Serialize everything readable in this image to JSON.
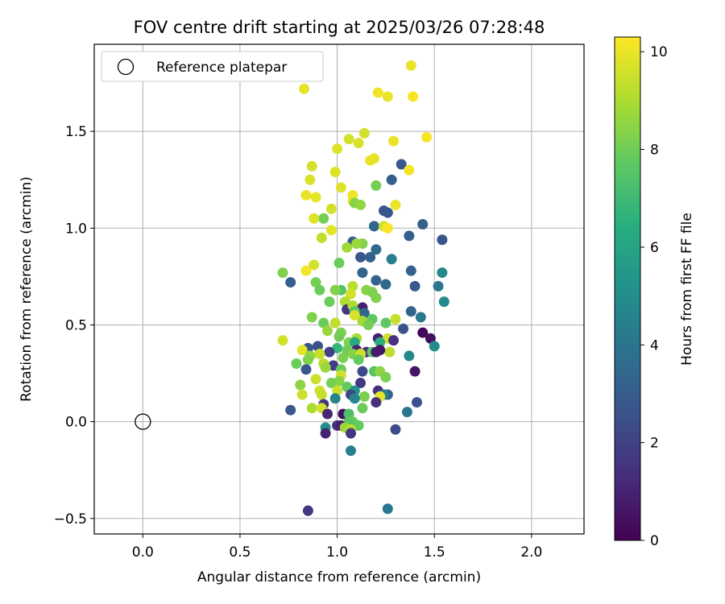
{
  "chart_data": {
    "type": "scatter",
    "title": "FOV centre drift starting at 2025/03/26 07:28:48",
    "xlabel": "Angular distance from reference (arcmin)",
    "ylabel": "Rotation from reference (arcmin)",
    "xlim": [
      -0.25,
      2.27
    ],
    "ylim": [
      -0.58,
      1.95
    ],
    "xticks": [
      0.0,
      0.5,
      1.0,
      1.5,
      2.0
    ],
    "xtick_labels": [
      "0.0",
      "0.5",
      "1.0",
      "1.5",
      "2.0"
    ],
    "yticks": [
      -0.5,
      0.0,
      0.5,
      1.0,
      1.5
    ],
    "ytick_labels": [
      "−0.5",
      "0.0",
      "0.5",
      "1.0",
      "1.5"
    ],
    "grid": true,
    "legend": {
      "position": "top-left",
      "entries": [
        "Reference platepar"
      ]
    },
    "colorbar": {
      "label": "Hours from first FF file",
      "range": [
        0,
        10.3
      ],
      "ticks": [
        0,
        2,
        4,
        6,
        8,
        10
      ],
      "tick_labels": [
        "0",
        "2",
        "4",
        "6",
        "8",
        "10"
      ],
      "colormap": "viridis"
    },
    "reference": {
      "x": 0.0,
      "y": 0.0,
      "label": "Reference platepar"
    },
    "points": [
      [
        1.38,
        1.84,
        10.0
      ],
      [
        0.83,
        1.72,
        9.9
      ],
      [
        1.21,
        1.7,
        10.1
      ],
      [
        1.26,
        1.68,
        10.0
      ],
      [
        1.39,
        1.68,
        10.2
      ],
      [
        1.14,
        1.49,
        9.6
      ],
      [
        1.06,
        1.46,
        9.6
      ],
      [
        1.46,
        1.47,
        10.2
      ],
      [
        1.29,
        1.45,
        10.0
      ],
      [
        1.11,
        1.44,
        9.7
      ],
      [
        1.0,
        1.41,
        9.8
      ],
      [
        1.19,
        1.36,
        9.9
      ],
      [
        1.17,
        1.35,
        10.0
      ],
      [
        1.33,
        1.33,
        2.8
      ],
      [
        0.87,
        1.32,
        9.6
      ],
      [
        1.37,
        1.3,
        10.1
      ],
      [
        0.99,
        1.29,
        9.8
      ],
      [
        1.28,
        1.25,
        3.1
      ],
      [
        0.86,
        1.25,
        9.7
      ],
      [
        1.02,
        1.21,
        9.8
      ],
      [
        1.2,
        1.22,
        8.1
      ],
      [
        0.84,
        1.17,
        10.0
      ],
      [
        0.89,
        1.16,
        9.9
      ],
      [
        1.08,
        1.17,
        10.1
      ],
      [
        1.08,
        1.14,
        10.0
      ],
      [
        1.09,
        1.13,
        8.4
      ],
      [
        1.12,
        1.12,
        8.6
      ],
      [
        1.3,
        1.12,
        10.0
      ],
      [
        0.97,
        1.1,
        9.6
      ],
      [
        1.24,
        1.09,
        2.6
      ],
      [
        1.26,
        1.08,
        2.8
      ],
      [
        0.93,
        1.05,
        8.1
      ],
      [
        0.88,
        1.05,
        9.8
      ],
      [
        1.44,
        1.02,
        3.1
      ],
      [
        1.19,
        1.01,
        3.4
      ],
      [
        1.24,
        1.01,
        9.6
      ],
      [
        1.26,
        1.0,
        10.2
      ],
      [
        0.97,
        0.99,
        9.9
      ],
      [
        1.37,
        0.96,
        3.1
      ],
      [
        0.92,
        0.95,
        9.3
      ],
      [
        1.54,
        0.94,
        2.8
      ],
      [
        1.08,
        0.93,
        3.0
      ],
      [
        1.13,
        0.92,
        8.3
      ],
      [
        1.1,
        0.92,
        8.7
      ],
      [
        1.2,
        0.89,
        3.6
      ],
      [
        1.05,
        0.9,
        8.8
      ],
      [
        1.12,
        0.85,
        2.8
      ],
      [
        1.17,
        0.85,
        3.1
      ],
      [
        1.28,
        0.84,
        4.4
      ],
      [
        1.01,
        0.82,
        7.9
      ],
      [
        0.88,
        0.81,
        9.6
      ],
      [
        0.84,
        0.78,
        10.1
      ],
      [
        1.38,
        0.78,
        3.1
      ],
      [
        1.54,
        0.77,
        4.8
      ],
      [
        0.72,
        0.77,
        8.3
      ],
      [
        1.13,
        0.77,
        3.3
      ],
      [
        0.76,
        0.72,
        3.1
      ],
      [
        1.2,
        0.73,
        3.3
      ],
      [
        0.89,
        0.72,
        8.1
      ],
      [
        1.25,
        0.71,
        3.4
      ],
      [
        1.4,
        0.7,
        2.9
      ],
      [
        1.52,
        0.7,
        4.0
      ],
      [
        1.08,
        0.7,
        9.2
      ],
      [
        1.02,
        0.68,
        7.5
      ],
      [
        0.91,
        0.68,
        7.9
      ],
      [
        1.15,
        0.68,
        8.4
      ],
      [
        0.99,
        0.68,
        8.3
      ],
      [
        1.18,
        0.67,
        8.2
      ],
      [
        1.07,
        0.66,
        9.6
      ],
      [
        1.2,
        0.64,
        8.3
      ],
      [
        1.04,
        0.62,
        9.1
      ],
      [
        0.96,
        0.62,
        7.9
      ],
      [
        1.05,
        0.58,
        1.6
      ],
      [
        1.08,
        0.6,
        9.1
      ],
      [
        1.13,
        0.59,
        0.9
      ],
      [
        1.09,
        0.57,
        7.7
      ],
      [
        1.38,
        0.57,
        3.2
      ],
      [
        1.14,
        0.56,
        3.4
      ],
      [
        1.55,
        0.62,
        4.8
      ],
      [
        1.43,
        0.54,
        4.1
      ],
      [
        1.09,
        0.55,
        9.7
      ],
      [
        0.87,
        0.54,
        8.3
      ],
      [
        1.3,
        0.53,
        9.4
      ],
      [
        1.18,
        0.53,
        7.7
      ],
      [
        1.13,
        0.52,
        8.9
      ],
      [
        1.25,
        0.51,
        7.7
      ],
      [
        0.99,
        0.51,
        9.3
      ],
      [
        0.93,
        0.51,
        7.9
      ],
      [
        1.16,
        0.5,
        8.1
      ],
      [
        1.34,
        0.48,
        2.6
      ],
      [
        0.95,
        0.47,
        8.7
      ],
      [
        1.02,
        0.46,
        8.2
      ],
      [
        1.44,
        0.46,
        0.2
      ],
      [
        1.01,
        0.44,
        8.0
      ],
      [
        1.21,
        0.43,
        0.9
      ],
      [
        1.1,
        0.43,
        9.0
      ],
      [
        0.72,
        0.42,
        9.6
      ],
      [
        1.26,
        0.43,
        9.6
      ],
      [
        1.06,
        0.41,
        8.3
      ],
      [
        1.22,
        0.41,
        6.5
      ],
      [
        1.09,
        0.41,
        6.3
      ],
      [
        1.29,
        0.42,
        1.5
      ],
      [
        1.48,
        0.43,
        0.4
      ],
      [
        1.5,
        0.39,
        5.0
      ],
      [
        0.9,
        0.39,
        2.5
      ],
      [
        1.0,
        0.38,
        6.8
      ],
      [
        0.85,
        0.38,
        2.8
      ],
      [
        1.05,
        0.37,
        8.0
      ],
      [
        1.1,
        0.37,
        1.0
      ],
      [
        0.82,
        0.37,
        9.9
      ],
      [
        1.15,
        0.36,
        1.6
      ],
      [
        0.96,
        0.36,
        2.0
      ],
      [
        1.27,
        0.36,
        9.3
      ],
      [
        1.18,
        0.36,
        7.7
      ],
      [
        1.22,
        0.37,
        0.5
      ],
      [
        1.2,
        0.36,
        0.8
      ],
      [
        1.08,
        0.35,
        8.3
      ],
      [
        1.12,
        0.35,
        9.5
      ],
      [
        0.91,
        0.35,
        9.4
      ],
      [
        1.37,
        0.34,
        4.8
      ],
      [
        0.86,
        0.34,
        8.6
      ],
      [
        1.03,
        0.33,
        8.2
      ],
      [
        1.11,
        0.32,
        7.8
      ],
      [
        0.85,
        0.32,
        8.3
      ],
      [
        0.93,
        0.3,
        9.2
      ],
      [
        0.79,
        0.3,
        7.9
      ],
      [
        0.98,
        0.29,
        1.9
      ],
      [
        0.94,
        0.28,
        8.7
      ],
      [
        0.84,
        0.27,
        2.8
      ],
      [
        1.02,
        0.27,
        7.9
      ],
      [
        1.19,
        0.26,
        7.5
      ],
      [
        1.13,
        0.26,
        2.3
      ],
      [
        1.22,
        0.26,
        8.5
      ],
      [
        1.4,
        0.26,
        0.6
      ],
      [
        1.02,
        0.24,
        9.6
      ],
      [
        1.25,
        0.23,
        8.2
      ],
      [
        0.89,
        0.22,
        9.5
      ],
      [
        1.01,
        0.21,
        8.4
      ],
      [
        0.97,
        0.2,
        8.1
      ],
      [
        1.12,
        0.2,
        1.7
      ],
      [
        0.81,
        0.19,
        8.5
      ],
      [
        1.05,
        0.18,
        7.8
      ],
      [
        1.21,
        0.16,
        1.4
      ],
      [
        0.91,
        0.16,
        9.6
      ],
      [
        1.09,
        0.16,
        5.2
      ],
      [
        1.0,
        0.16,
        9.5
      ],
      [
        0.92,
        0.14,
        9.4
      ],
      [
        0.82,
        0.14,
        9.5
      ],
      [
        1.26,
        0.14,
        3.3
      ],
      [
        1.07,
        0.14,
        2.2
      ],
      [
        1.24,
        0.14,
        4.4
      ],
      [
        1.22,
        0.13,
        9.9
      ],
      [
        1.14,
        0.13,
        8.2
      ],
      [
        0.99,
        0.12,
        4.6
      ],
      [
        1.09,
        0.12,
        4.6
      ],
      [
        1.2,
        0.1,
        1.4
      ],
      [
        1.41,
        0.1,
        2.6
      ],
      [
        0.93,
        0.09,
        1.6
      ],
      [
        0.87,
        0.07,
        9.0
      ],
      [
        0.92,
        0.07,
        9.6
      ],
      [
        1.13,
        0.07,
        7.9
      ],
      [
        0.76,
        0.06,
        2.8
      ],
      [
        1.36,
        0.05,
        4.0
      ],
      [
        1.03,
        0.04,
        0.5
      ],
      [
        1.06,
        0.04,
        7.3
      ],
      [
        0.95,
        0.04,
        1.1
      ],
      [
        1.06,
        0.0,
        7.7
      ],
      [
        1.08,
        0.0,
        8.0
      ],
      [
        1.07,
        -0.01,
        7.6
      ],
      [
        1.0,
        -0.02,
        1.4
      ],
      [
        1.02,
        -0.02,
        0.8
      ],
      [
        1.11,
        -0.02,
        7.8
      ],
      [
        0.94,
        -0.03,
        5.0
      ],
      [
        1.04,
        -0.03,
        8.7
      ],
      [
        1.07,
        -0.04,
        9.2
      ],
      [
        1.3,
        -0.04,
        2.4
      ],
      [
        0.94,
        -0.06,
        1.0
      ],
      [
        1.07,
        -0.06,
        1.6
      ],
      [
        1.07,
        -0.15,
        4.4
      ],
      [
        0.85,
        -0.46,
        1.6
      ],
      [
        1.26,
        -0.45,
        4.1
      ]
    ]
  }
}
